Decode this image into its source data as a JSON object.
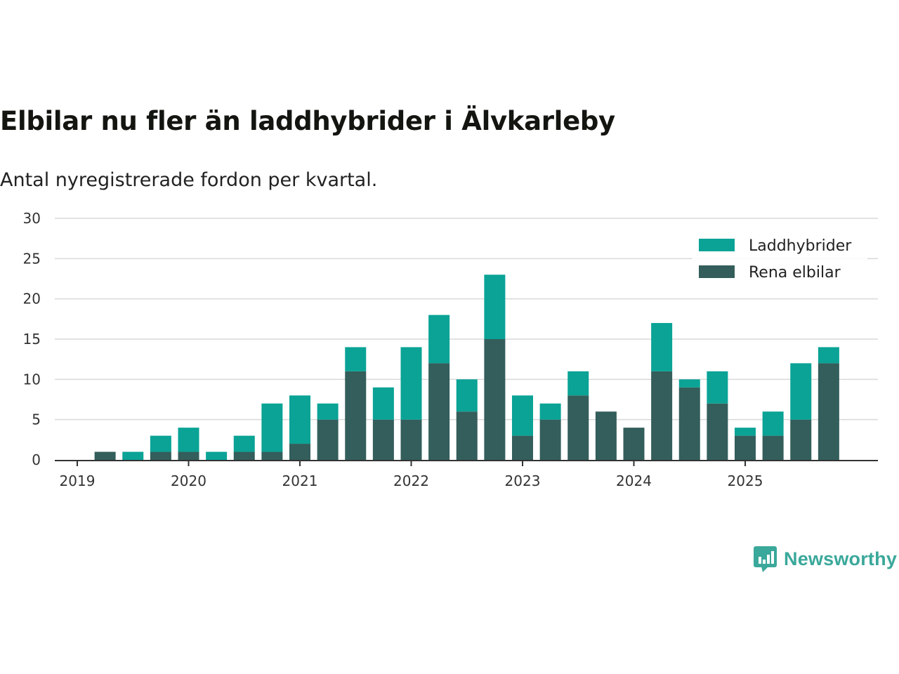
{
  "title": "Elbilar nu fler än laddhybrider i Älvkarleby",
  "subtitle": "Antal nyregistrerade fordon per kvartal.",
  "brand": "Newsworthy",
  "colors": {
    "laddhybrider": "#0aa396",
    "elbilar": "#335e5b",
    "grid": "#d9d9d9",
    "axis": "#333333"
  },
  "chart_data": {
    "type": "bar",
    "stacked": true,
    "title": "Elbilar nu fler än laddhybrider i Älvkarleby",
    "subtitle": "Antal nyregistrerade fordon per kvartal.",
    "xlabel": "",
    "ylabel": "",
    "ylim": [
      0,
      30
    ],
    "yticks": [
      "0",
      "5",
      "10",
      "15",
      "20",
      "25",
      "30"
    ],
    "xticks": [
      "2019",
      "2020",
      "2021",
      "2022",
      "2023",
      "2024",
      "2025"
    ],
    "legend_position": "top-right",
    "categories": [
      "2019 Q2",
      "2019 Q3",
      "2019 Q4",
      "2020 Q1",
      "2020 Q2",
      "2020 Q3",
      "2020 Q4",
      "2021 Q1",
      "2021 Q2",
      "2021 Q3",
      "2021 Q4",
      "2022 Q1",
      "2022 Q2",
      "2022 Q3",
      "2022 Q4",
      "2023 Q1",
      "2023 Q2",
      "2023 Q3",
      "2023 Q4",
      "2024 Q1",
      "2024 Q2",
      "2024 Q3",
      "2024 Q4",
      "2025 Q1",
      "2025 Q2",
      "2025 Q3",
      "2025 Q4"
    ],
    "series": [
      {
        "name": "Rena elbilar",
        "values": [
          1,
          0,
          1,
          1,
          0,
          1,
          1,
          2,
          5,
          11,
          5,
          5,
          12,
          6,
          15,
          3,
          5,
          8,
          6,
          4,
          11,
          9,
          7,
          3,
          3,
          5,
          12
        ]
      },
      {
        "name": "Laddhybrider",
        "values": [
          0,
          1,
          2,
          3,
          1,
          2,
          6,
          6,
          2,
          3,
          4,
          9,
          6,
          4,
          8,
          5,
          2,
          3,
          0,
          0,
          6,
          1,
          4,
          1,
          3,
          7,
          2
        ]
      }
    ]
  }
}
